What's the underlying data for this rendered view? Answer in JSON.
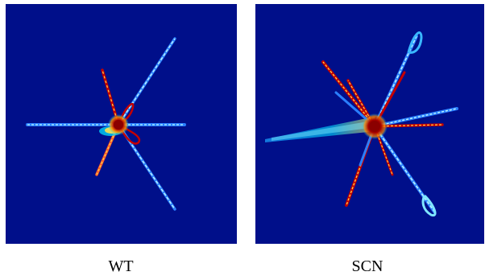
{
  "panels": [
    {
      "id": "wt",
      "label": "WT"
    },
    {
      "id": "scn",
      "label": "SCN"
    }
  ],
  "colors": {
    "background": "#000f8a",
    "arm_core": "#7bd8ff",
    "arm_mid": "#2a7fff",
    "hotspot": "#8b0000",
    "warm": "#ffd54a"
  }
}
